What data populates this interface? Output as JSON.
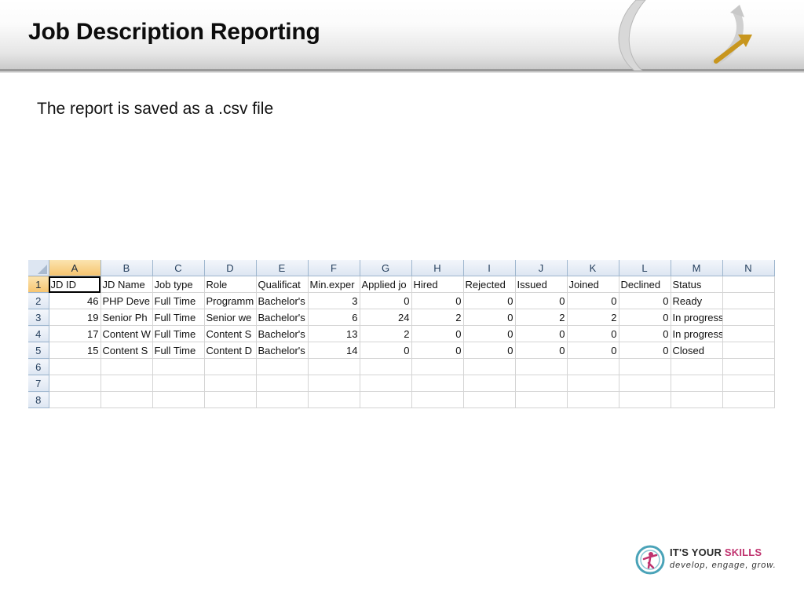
{
  "slide": {
    "title": "Job Description Reporting",
    "subtitle": "The report is saved as a .csv file"
  },
  "spreadsheet": {
    "selected_column": "A",
    "active_cell": "A1",
    "columns": [
      "A",
      "B",
      "C",
      "D",
      "E",
      "F",
      "G",
      "H",
      "I",
      "J",
      "K",
      "L",
      "M",
      "N"
    ],
    "row_numbers": [
      "1",
      "2",
      "3",
      "4",
      "5",
      "6",
      "7",
      "8"
    ],
    "header_row": [
      "JD ID",
      "JD Name",
      "Job type",
      "Role",
      "Qualificat",
      "Min.exper",
      "Applied jo",
      "Hired",
      "Rejected",
      "Issued",
      "Joined",
      "Declined",
      "Status",
      ""
    ],
    "rows": [
      [
        "46",
        "PHP Deve",
        "Full Time",
        "Programm",
        "Bachelor's",
        "3",
        "0",
        "0",
        "0",
        "0",
        "0",
        "0",
        "Ready",
        ""
      ],
      [
        "19",
        "Senior Ph",
        "Full Time",
        "Senior we",
        "Bachelor's",
        "6",
        "24",
        "2",
        "0",
        "2",
        "2",
        "0",
        "In progress",
        ""
      ],
      [
        "17",
        "Content W",
        "Full Time",
        "Content S",
        "Bachelor's",
        "13",
        "2",
        "0",
        "0",
        "0",
        "0",
        "0",
        "In progress",
        ""
      ],
      [
        "15",
        "Content S",
        "Full Time",
        "Content D",
        "Bachelor's",
        "14",
        "0",
        "0",
        "0",
        "0",
        "0",
        "0",
        "Closed",
        ""
      ],
      [
        "",
        "",
        "",
        "",
        "",
        "",
        "",
        "",
        "",
        "",
        "",
        "",
        "",
        ""
      ],
      [
        "",
        "",
        "",
        "",
        "",
        "",
        "",
        "",
        "",
        "",
        "",
        "",
        "",
        ""
      ],
      [
        "",
        "",
        "",
        "",
        "",
        "",
        "",
        "",
        "",
        "",
        "",
        "",
        "",
        ""
      ]
    ],
    "numeric_columns": [
      0,
      5,
      6,
      7,
      8,
      9,
      10,
      11
    ]
  },
  "logo": {
    "name_part1": "IT'S YOUR ",
    "name_part2": "SKILLS",
    "tagline": "develop, engage, grow."
  },
  "colors": {
    "accent_pink": "#c0336f",
    "selected_header": "#f6c46f",
    "header_blue": "#dde6f2"
  }
}
